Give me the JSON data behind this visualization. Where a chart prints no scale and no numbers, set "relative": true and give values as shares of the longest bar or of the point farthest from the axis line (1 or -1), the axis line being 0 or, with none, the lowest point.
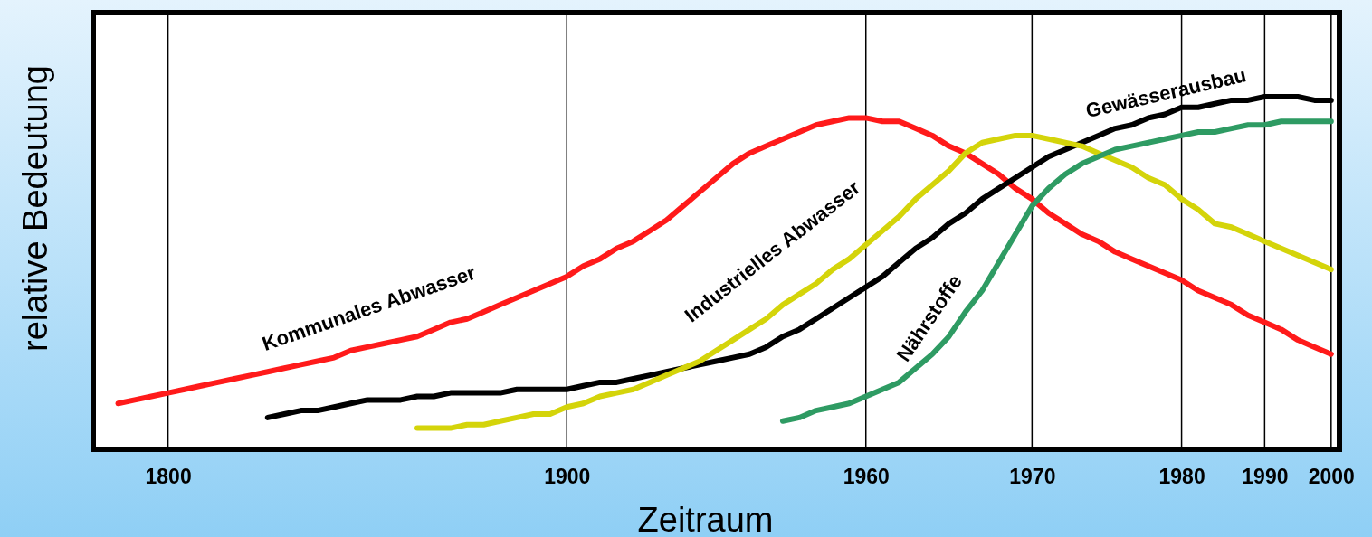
{
  "chart_data": {
    "type": "line",
    "relative": true,
    "xlabel": "Zeitraum",
    "ylabel": "relative Bedeutung",
    "grid": "x",
    "legend": false,
    "marker": "none",
    "line_style": "solid",
    "categories": [
      null,
      null,
      null,
      null,
      "1800",
      null,
      null,
      null,
      null,
      null,
      null,
      null,
      null,
      null,
      null,
      null,
      null,
      null,
      null,
      null,
      null,
      null,
      null,
      null,
      null,
      null,
      null,
      null,
      "1900",
      null,
      null,
      null,
      null,
      null,
      null,
      null,
      null,
      null,
      null,
      null,
      null,
      null,
      null,
      null,
      null,
      null,
      "1960",
      null,
      null,
      null,
      null,
      null,
      null,
      null,
      null,
      null,
      "1970",
      null,
      null,
      null,
      null,
      null,
      null,
      null,
      null,
      "1980",
      null,
      null,
      null,
      null,
      "1990",
      null,
      null,
      null,
      "2000"
    ],
    "series": [
      {
        "name": "Kommunales Abwasser",
        "color": "#ff1a1a",
        "values": [
          null,
          0.13,
          0.14,
          0.15,
          0.16,
          0.17,
          0.18,
          0.19,
          0.2,
          0.21,
          0.22,
          0.23,
          0.24,
          0.25,
          0.26,
          0.28,
          0.29,
          0.3,
          0.31,
          0.32,
          0.34,
          0.36,
          0.37,
          0.39,
          0.41,
          0.43,
          0.45,
          0.47,
          0.49,
          0.52,
          0.54,
          0.57,
          0.59,
          0.62,
          0.65,
          0.69,
          0.73,
          0.77,
          0.81,
          0.84,
          0.86,
          0.88,
          0.9,
          0.92,
          0.93,
          0.94,
          0.94,
          0.93,
          0.93,
          0.91,
          0.89,
          0.86,
          0.84,
          0.81,
          0.78,
          0.74,
          0.71,
          0.67,
          0.64,
          0.61,
          0.59,
          0.56,
          0.54,
          0.52,
          0.5,
          0.48,
          0.45,
          0.43,
          0.41,
          0.38,
          0.36,
          0.34,
          0.31,
          0.29,
          0.27
        ]
      },
      {
        "name": "Gewässerausbau",
        "color": "#000000",
        "values": [
          null,
          null,
          null,
          null,
          null,
          null,
          null,
          null,
          null,
          null,
          0.09,
          0.1,
          0.11,
          0.11,
          0.12,
          0.13,
          0.14,
          0.14,
          0.14,
          0.15,
          0.15,
          0.16,
          0.16,
          0.16,
          0.16,
          0.17,
          0.17,
          0.17,
          0.17,
          0.18,
          0.19,
          0.19,
          0.2,
          0.21,
          0.22,
          0.23,
          0.24,
          0.25,
          0.26,
          0.27,
          0.29,
          0.32,
          0.34,
          0.37,
          0.4,
          0.43,
          0.46,
          0.49,
          0.53,
          0.57,
          0.6,
          0.64,
          0.67,
          0.71,
          0.74,
          0.77,
          0.8,
          0.83,
          0.85,
          0.87,
          0.89,
          0.91,
          0.92,
          0.94,
          0.95,
          0.97,
          0.97,
          0.98,
          0.99,
          0.99,
          1,
          1,
          1,
          0.99,
          0.99
        ]
      },
      {
        "name": "Industrielles Abwasser",
        "color": "#d4d40a",
        "values": [
          null,
          null,
          null,
          null,
          null,
          null,
          null,
          null,
          null,
          null,
          null,
          null,
          null,
          null,
          null,
          null,
          null,
          null,
          null,
          0.06,
          0.06,
          0.06,
          0.07,
          0.07,
          0.08,
          0.09,
          0.1,
          0.1,
          0.12,
          0.13,
          0.15,
          0.16,
          0.17,
          0.19,
          0.21,
          0.23,
          0.25,
          0.28,
          0.31,
          0.34,
          0.37,
          0.41,
          0.44,
          0.47,
          0.51,
          0.54,
          0.58,
          0.62,
          0.66,
          0.71,
          0.75,
          0.79,
          0.84,
          0.87,
          0.88,
          0.89,
          0.89,
          0.88,
          0.87,
          0.86,
          0.84,
          0.82,
          0.8,
          0.77,
          0.75,
          0.71,
          0.68,
          0.64,
          0.63,
          0.61,
          0.59,
          0.57,
          0.55,
          0.53,
          0.51
        ]
      },
      {
        "name": "Nährstoffe",
        "color": "#2e9b63",
        "values": [
          null,
          null,
          null,
          null,
          null,
          null,
          null,
          null,
          null,
          null,
          null,
          null,
          null,
          null,
          null,
          null,
          null,
          null,
          null,
          null,
          null,
          null,
          null,
          null,
          null,
          null,
          null,
          null,
          null,
          null,
          null,
          null,
          null,
          null,
          null,
          null,
          null,
          null,
          null,
          null,
          null,
          0.08,
          0.09,
          0.11,
          0.12,
          0.13,
          0.15,
          0.17,
          0.19,
          0.23,
          0.27,
          0.32,
          0.39,
          0.45,
          0.53,
          0.61,
          0.69,
          0.74,
          0.78,
          0.81,
          0.83,
          0.85,
          0.86,
          0.87,
          0.88,
          0.89,
          0.9,
          0.9,
          0.91,
          0.92,
          0.92,
          0.93,
          0.93,
          0.93,
          0.93
        ]
      }
    ]
  }
}
